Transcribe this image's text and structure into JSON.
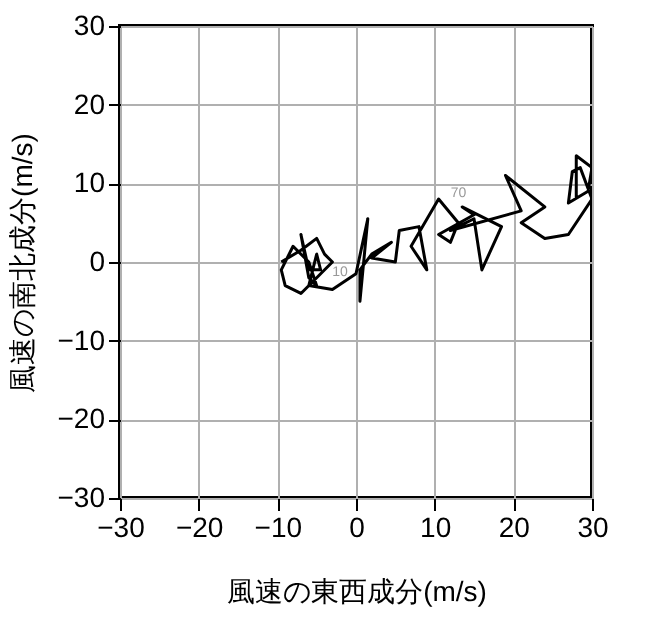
{
  "chart_data": {
    "type": "line",
    "xlabel": "風速の東西成分(m/s)",
    "ylabel": "風速の南北成分(m/s)",
    "xlim": [
      -30,
      30
    ],
    "ylim": [
      -30,
      30
    ],
    "xticks": [
      -30,
      -20,
      -10,
      0,
      10,
      20,
      30
    ],
    "yticks": [
      -30,
      -20,
      -10,
      0,
      10,
      20,
      30
    ],
    "grid": true,
    "marker": "none",
    "line_style": "solid",
    "annotations": [
      {
        "text": "10",
        "x": 0,
        "y": -1.5
      },
      {
        "text": "70",
        "x": 10.5,
        "y": 8
      }
    ],
    "series": [
      {
        "color": "#000000",
        "x": [
          -9.5,
          -7,
          -5,
          -4,
          -3,
          -5,
          -7,
          -9,
          -9.5,
          -8,
          -6,
          -5,
          -6,
          -7,
          -6,
          -4.5,
          -5,
          -6,
          -3,
          0,
          1.5,
          0.5,
          0.5,
          2,
          4.5,
          2,
          5,
          5.5,
          8,
          9,
          7,
          10.5,
          13,
          12,
          10.5,
          15,
          13.5,
          18.5,
          16,
          15,
          12,
          21,
          19,
          24,
          21,
          24,
          27,
          30,
          28.5,
          27.5,
          27,
          29.5,
          30,
          28,
          28
        ],
        "values": [
          0,
          1.5,
          3,
          1,
          0,
          -2,
          -4,
          -3,
          -1,
          2,
          0,
          -3,
          -2,
          3.5,
          -1,
          -1,
          1,
          -3,
          -3.5,
          -1.5,
          5.5,
          -5,
          -1,
          1,
          2.5,
          0.5,
          0,
          4,
          4.5,
          -1,
          2,
          8,
          5,
          2.5,
          3.5,
          6,
          7,
          4.5,
          -1,
          5.5,
          4,
          6.5,
          11,
          7,
          5,
          3,
          3.5,
          8,
          12,
          11.5,
          7.5,
          9,
          12,
          13.5,
          8
        ]
      }
    ]
  }
}
